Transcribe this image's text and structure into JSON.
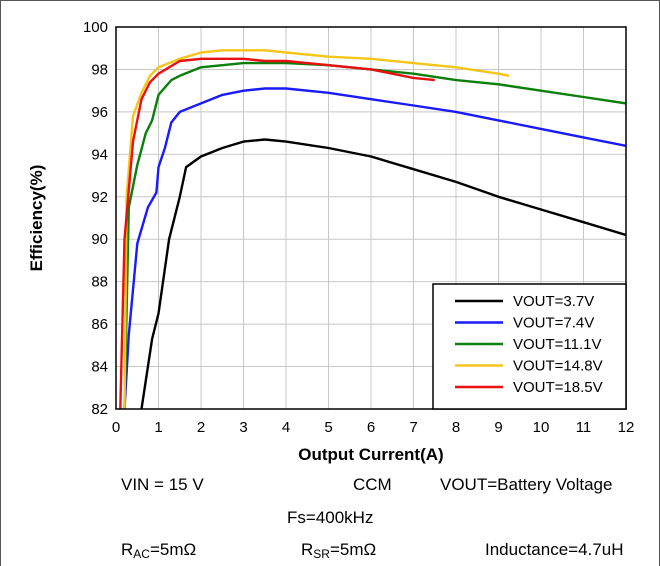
{
  "chart_data": {
    "type": "line",
    "xlabel": "Output Current(A)",
    "ylabel": "Efficiency(%)",
    "xlim": [
      0,
      12
    ],
    "ylim": [
      82,
      100
    ],
    "xticks": [
      0,
      1,
      2,
      3,
      4,
      5,
      6,
      7,
      8,
      9,
      10,
      11,
      12
    ],
    "yticks": [
      82,
      84,
      86,
      88,
      90,
      92,
      94,
      96,
      98,
      100
    ],
    "grid": true,
    "legend_position": "bottom-right",
    "series": [
      {
        "name": "VOUT=3.7V",
        "color": "#000000",
        "x": [
          0.6,
          0.85,
          1.0,
          1.25,
          1.5,
          1.65,
          2.0,
          2.5,
          3.0,
          3.5,
          4.0,
          5.0,
          6.0,
          7.0,
          8.0,
          9.0,
          10.0,
          11.0,
          12.0
        ],
        "y": [
          82.0,
          85.3,
          86.5,
          90.0,
          92.0,
          93.4,
          93.9,
          94.3,
          94.6,
          94.7,
          94.6,
          94.3,
          93.9,
          93.3,
          92.7,
          92.0,
          91.4,
          90.8,
          90.2
        ]
      },
      {
        "name": "VOUT=7.4V",
        "color": "#1a1aff",
        "x": [
          0.2,
          0.3,
          0.5,
          0.75,
          0.95,
          1.0,
          1.15,
          1.3,
          1.5,
          2.0,
          2.5,
          3.0,
          3.5,
          4.0,
          5.0,
          6.0,
          7.0,
          8.0,
          9.0,
          10.0,
          11.0,
          12.0
        ],
        "y": [
          82.0,
          85.5,
          89.8,
          91.5,
          92.2,
          93.4,
          94.3,
          95.5,
          96.0,
          96.4,
          96.8,
          97.0,
          97.1,
          97.1,
          96.9,
          96.6,
          96.3,
          96.0,
          95.6,
          95.2,
          94.8,
          94.4
        ]
      },
      {
        "name": "VOUT=11.1V",
        "color": "#0a7f0a",
        "x": [
          0.2,
          0.3,
          0.5,
          0.7,
          0.85,
          1.0,
          1.3,
          1.5,
          2.0,
          2.5,
          3.0,
          3.5,
          4.0,
          5.0,
          6.0,
          7.0,
          8.0,
          9.0,
          10.0,
          11.0,
          12.0
        ],
        "y": [
          82.0,
          91.5,
          93.5,
          95.0,
          95.6,
          96.8,
          97.5,
          97.7,
          98.1,
          98.2,
          98.3,
          98.3,
          98.3,
          98.2,
          98.0,
          97.8,
          97.5,
          97.3,
          97.0,
          96.7,
          96.4
        ]
      },
      {
        "name": "VOUT=14.8V",
        "color": "#f5c518",
        "x": [
          0.2,
          0.25,
          0.4,
          0.6,
          0.8,
          1.0,
          1.5,
          2.0,
          2.5,
          3.0,
          3.5,
          4.0,
          5.0,
          6.0,
          7.0,
          8.0,
          9.0,
          9.25
        ],
        "y": [
          82.0,
          92.0,
          95.8,
          96.9,
          97.7,
          98.1,
          98.5,
          98.8,
          98.9,
          98.9,
          98.9,
          98.8,
          98.6,
          98.5,
          98.3,
          98.1,
          97.8,
          97.7
        ]
      },
      {
        "name": "VOUT=18.5V",
        "color": "#e81010",
        "x": [
          0.1,
          0.2,
          0.4,
          0.6,
          0.8,
          1.0,
          1.5,
          2.0,
          2.5,
          3.0,
          3.5,
          4.0,
          4.5,
          5.0,
          5.5,
          6.0,
          6.5,
          7.0,
          7.5
        ],
        "y": [
          82.0,
          90.0,
          94.6,
          96.6,
          97.4,
          97.8,
          98.4,
          98.5,
          98.5,
          98.5,
          98.4,
          98.4,
          98.3,
          98.2,
          98.1,
          98.0,
          97.8,
          97.6,
          97.5
        ]
      }
    ]
  },
  "conditions": {
    "vin": "VIN = 15 V",
    "mode": "CCM",
    "vout": "VOUT=Battery Voltage",
    "fs": "Fs=400kHz",
    "rac_main": "R",
    "rac_sub": "AC",
    "rac_value": "=5mΩ",
    "rsr_main": "R",
    "rsr_sub": "SR",
    "rsr_value": "=5mΩ",
    "inductance": "Inductance=4.7uH"
  }
}
